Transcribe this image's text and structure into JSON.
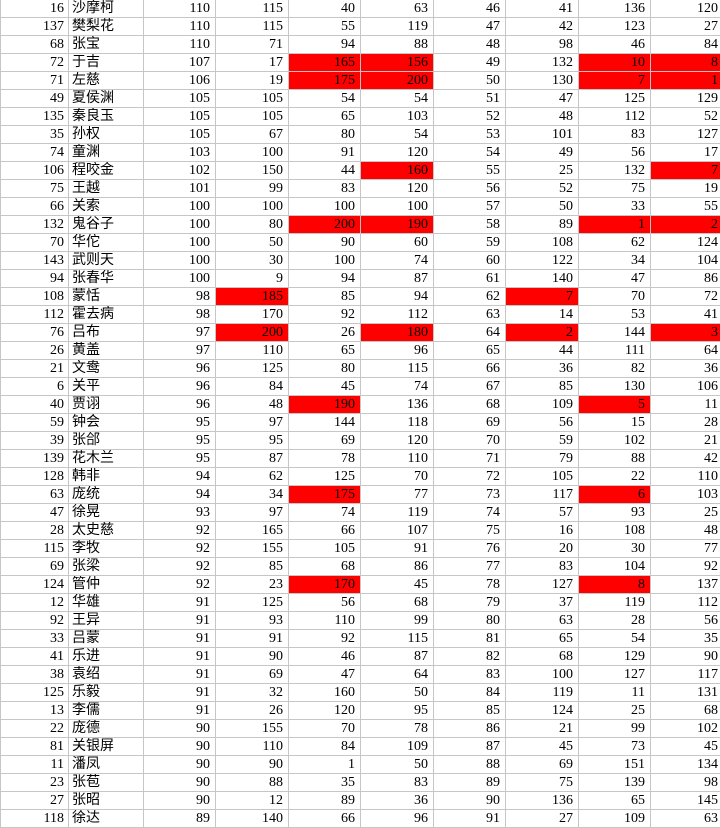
{
  "app": {
    "view": "spreadsheet-cells-grid",
    "header_visible": false
  },
  "colors": {
    "highlight_fill": "#ff0000",
    "gridline": "#c6c6c6",
    "text": "#000000",
    "background": "#ffffff"
  },
  "table": {
    "column_semantics": [
      "id",
      "name",
      "stat1",
      "stat2",
      "stat3",
      "stat4",
      "rank",
      "stat5",
      "stat6",
      "stat7"
    ],
    "rows": [
      {
        "id": 16,
        "name": "沙摩柯",
        "values": [
          110,
          115,
          40,
          63,
          46,
          41,
          136,
          120
        ],
        "red_value_indexes": []
      },
      {
        "id": 137,
        "name": "樊梨花",
        "values": [
          110,
          115,
          55,
          119,
          47,
          42,
          123,
          27
        ],
        "red_value_indexes": []
      },
      {
        "id": 68,
        "name": "张宝",
        "values": [
          110,
          71,
          94,
          88,
          48,
          98,
          46,
          84
        ],
        "red_value_indexes": []
      },
      {
        "id": 72,
        "name": "于吉",
        "values": [
          107,
          17,
          165,
          156,
          49,
          132,
          10,
          8
        ],
        "red_value_indexes": [
          2,
          3,
          6,
          7
        ]
      },
      {
        "id": 71,
        "name": "左慈",
        "values": [
          106,
          19,
          175,
          200,
          50,
          130,
          7,
          1
        ],
        "red_value_indexes": [
          2,
          3,
          6,
          7
        ]
      },
      {
        "id": 49,
        "name": "夏侯渊",
        "values": [
          105,
          105,
          54,
          54,
          51,
          47,
          125,
          129
        ],
        "red_value_indexes": []
      },
      {
        "id": 135,
        "name": "秦良玉",
        "values": [
          105,
          105,
          65,
          103,
          52,
          48,
          112,
          52
        ],
        "red_value_indexes": []
      },
      {
        "id": 35,
        "name": "孙权",
        "values": [
          105,
          67,
          80,
          54,
          53,
          101,
          83,
          127
        ],
        "red_value_indexes": []
      },
      {
        "id": 74,
        "name": "童渊",
        "values": [
          103,
          100,
          91,
          120,
          54,
          49,
          56,
          17
        ],
        "red_value_indexes": []
      },
      {
        "id": 106,
        "name": "程咬金",
        "values": [
          102,
          150,
          44,
          160,
          55,
          25,
          132,
          7
        ],
        "red_value_indexes": [
          3,
          7
        ]
      },
      {
        "id": 75,
        "name": "王越",
        "values": [
          101,
          99,
          83,
          120,
          56,
          52,
          75,
          19
        ],
        "red_value_indexes": []
      },
      {
        "id": 66,
        "name": "关索",
        "values": [
          100,
          100,
          100,
          100,
          57,
          50,
          33,
          55
        ],
        "red_value_indexes": []
      },
      {
        "id": 132,
        "name": "鬼谷子",
        "values": [
          100,
          80,
          200,
          190,
          58,
          89,
          1,
          2
        ],
        "red_value_indexes": [
          2,
          3,
          6,
          7
        ]
      },
      {
        "id": 70,
        "name": "华佗",
        "values": [
          100,
          50,
          90,
          60,
          59,
          108,
          62,
          124
        ],
        "red_value_indexes": []
      },
      {
        "id": 143,
        "name": "武则天",
        "values": [
          100,
          30,
          100,
          74,
          60,
          122,
          34,
          104
        ],
        "red_value_indexes": []
      },
      {
        "id": 94,
        "name": "张春华",
        "values": [
          100,
          9,
          94,
          87,
          61,
          140,
          47,
          86
        ],
        "red_value_indexes": []
      },
      {
        "id": 108,
        "name": "蒙恬",
        "values": [
          98,
          185,
          85,
          94,
          62,
          7,
          70,
          72
        ],
        "red_value_indexes": [
          1,
          5
        ]
      },
      {
        "id": 112,
        "name": "霍去病",
        "values": [
          98,
          170,
          92,
          112,
          63,
          14,
          53,
          41
        ],
        "red_value_indexes": []
      },
      {
        "id": 76,
        "name": "吕布",
        "values": [
          97,
          200,
          26,
          180,
          64,
          2,
          144,
          3
        ],
        "red_value_indexes": [
          1,
          3,
          5,
          7
        ]
      },
      {
        "id": 26,
        "name": "黄盖",
        "values": [
          97,
          110,
          65,
          96,
          65,
          44,
          111,
          64
        ],
        "red_value_indexes": []
      },
      {
        "id": 21,
        "name": "文鸯",
        "values": [
          96,
          125,
          80,
          115,
          66,
          36,
          82,
          36
        ],
        "red_value_indexes": []
      },
      {
        "id": 6,
        "name": "关平",
        "values": [
          96,
          84,
          45,
          74,
          67,
          85,
          130,
          106
        ],
        "red_value_indexes": []
      },
      {
        "id": 40,
        "name": "贾诩",
        "values": [
          96,
          48,
          190,
          136,
          68,
          109,
          5,
          11
        ],
        "red_value_indexes": [
          2,
          6
        ]
      },
      {
        "id": 59,
        "name": "钟会",
        "values": [
          95,
          97,
          144,
          118,
          69,
          56,
          15,
          28
        ],
        "red_value_indexes": []
      },
      {
        "id": 39,
        "name": "张郃",
        "values": [
          95,
          95,
          69,
          120,
          70,
          59,
          102,
          21
        ],
        "red_value_indexes": []
      },
      {
        "id": 139,
        "name": "花木兰",
        "values": [
          95,
          87,
          78,
          110,
          71,
          79,
          88,
          42
        ],
        "red_value_indexes": []
      },
      {
        "id": 128,
        "name": "韩非",
        "values": [
          94,
          62,
          125,
          70,
          72,
          105,
          22,
          110
        ],
        "red_value_indexes": []
      },
      {
        "id": 63,
        "name": "庞统",
        "values": [
          94,
          34,
          175,
          77,
          73,
          117,
          6,
          103
        ],
        "red_value_indexes": [
          2,
          6
        ]
      },
      {
        "id": 47,
        "name": "徐晃",
        "values": [
          93,
          97,
          74,
          119,
          74,
          57,
          93,
          25
        ],
        "red_value_indexes": []
      },
      {
        "id": 28,
        "name": "太史慈",
        "values": [
          92,
          165,
          66,
          107,
          75,
          16,
          108,
          48
        ],
        "red_value_indexes": []
      },
      {
        "id": 115,
        "name": "李牧",
        "values": [
          92,
          155,
          105,
          91,
          76,
          20,
          30,
          77
        ],
        "red_value_indexes": []
      },
      {
        "id": 69,
        "name": "张梁",
        "values": [
          92,
          85,
          68,
          86,
          77,
          83,
          104,
          92
        ],
        "red_value_indexes": []
      },
      {
        "id": 124,
        "name": "管仲",
        "values": [
          92,
          23,
          170,
          45,
          78,
          127,
          8,
          137
        ],
        "red_value_indexes": [
          2,
          6
        ]
      },
      {
        "id": 12,
        "name": "华雄",
        "values": [
          91,
          125,
          56,
          68,
          79,
          37,
          119,
          112
        ],
        "red_value_indexes": []
      },
      {
        "id": 92,
        "name": "王异",
        "values": [
          91,
          93,
          110,
          99,
          80,
          63,
          28,
          56
        ],
        "red_value_indexes": []
      },
      {
        "id": 33,
        "name": "吕蒙",
        "values": [
          91,
          91,
          92,
          115,
          81,
          65,
          54,
          35
        ],
        "red_value_indexes": []
      },
      {
        "id": 41,
        "name": "乐进",
        "values": [
          91,
          90,
          46,
          87,
          82,
          68,
          129,
          90
        ],
        "red_value_indexes": []
      },
      {
        "id": 38,
        "name": "袁绍",
        "values": [
          91,
          69,
          47,
          64,
          83,
          100,
          127,
          117
        ],
        "red_value_indexes": []
      },
      {
        "id": 125,
        "name": "乐毅",
        "values": [
          91,
          32,
          160,
          50,
          84,
          119,
          11,
          131
        ],
        "red_value_indexes": []
      },
      {
        "id": 13,
        "name": "李儒",
        "values": [
          91,
          26,
          120,
          95,
          85,
          124,
          25,
          68
        ],
        "red_value_indexes": []
      },
      {
        "id": 22,
        "name": "庞德",
        "values": [
          90,
          155,
          70,
          78,
          86,
          21,
          99,
          102
        ],
        "red_value_indexes": []
      },
      {
        "id": 81,
        "name": "关银屏",
        "values": [
          90,
          110,
          84,
          109,
          87,
          45,
          73,
          45
        ],
        "red_value_indexes": []
      },
      {
        "id": 11,
        "name": "潘凤",
        "values": [
          90,
          90,
          1,
          50,
          88,
          69,
          151,
          134
        ],
        "red_value_indexes": []
      },
      {
        "id": 23,
        "name": "张苞",
        "values": [
          90,
          88,
          35,
          83,
          89,
          75,
          139,
          98
        ],
        "red_value_indexes": []
      },
      {
        "id": 27,
        "name": "张昭",
        "values": [
          90,
          12,
          89,
          36,
          90,
          136,
          65,
          145
        ],
        "red_value_indexes": []
      },
      {
        "id": 118,
        "name": "徐达",
        "values": [
          89,
          140,
          66,
          96,
          91,
          27,
          109,
          63
        ],
        "red_value_indexes": []
      }
    ]
  }
}
